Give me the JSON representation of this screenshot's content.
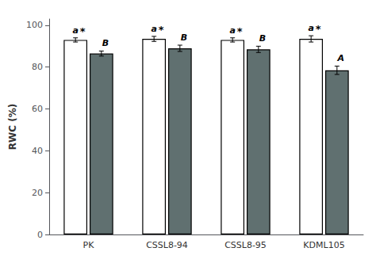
{
  "chart_data": {
    "type": "bar",
    "categories": [
      "PK",
      "CSSL8-94",
      "CSSL8-95",
      "KDML105"
    ],
    "series": [
      {
        "color": "#FFFFFF",
        "values": [
          93.0,
          93.5,
          93.0,
          93.5
        ],
        "errors": [
          1.0,
          1.2,
          1.0,
          1.5
        ],
        "labels": [
          "a",
          "a",
          "a",
          "a"
        ],
        "sig_labels": [
          "*",
          "*",
          "*",
          "*"
        ]
      },
      {
        "color": "#607070",
        "values": [
          86.5,
          89.0,
          88.5,
          78.5
        ],
        "errors": [
          1.2,
          1.5,
          1.5,
          2.0
        ],
        "labels": [
          "B",
          "B",
          "B",
          "A"
        ]
      }
    ],
    "ylabel": "RWC (%)",
    "ylim": [
      0,
      103
    ],
    "yticks": [
      0,
      20,
      40,
      60,
      80,
      100
    ],
    "grid": false
  }
}
